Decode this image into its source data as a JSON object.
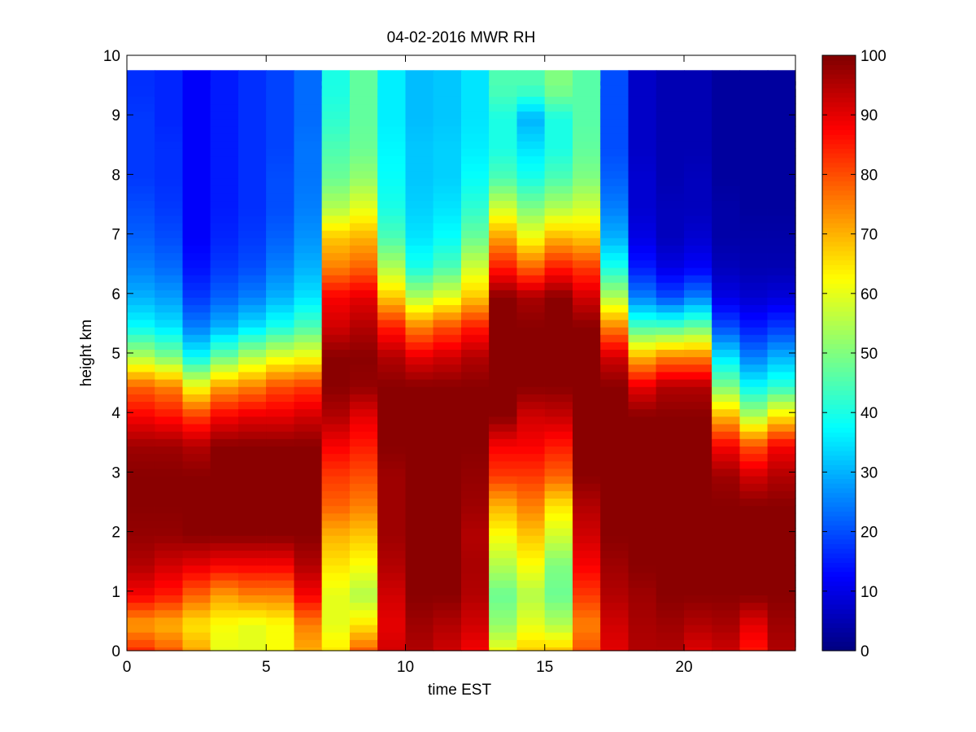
{
  "chart_data": {
    "type": "heatmap",
    "title": "04-02-2016 MWR RH",
    "xlabel": "time EST",
    "ylabel": "height km",
    "xlim": [
      0,
      24
    ],
    "ylim": [
      0,
      10
    ],
    "xticks": [
      "0",
      "5",
      "10",
      "15",
      "20"
    ],
    "yticks": [
      "0",
      "1",
      "2",
      "3",
      "4",
      "5",
      "6",
      "7",
      "8",
      "9",
      "10"
    ],
    "colorbar": {
      "range": [
        0,
        100
      ],
      "ticks": [
        "0",
        "10",
        "20",
        "30",
        "40",
        "50",
        "60",
        "70",
        "80",
        "90",
        "100"
      ],
      "colormap": "jet"
    },
    "x_hours": [
      0,
      1,
      2,
      3,
      4,
      5,
      6,
      7,
      8,
      9,
      10,
      11,
      12,
      13,
      14,
      15,
      16,
      17,
      18,
      19,
      20,
      21,
      22,
      23
    ],
    "heights_km": [
      0,
      0.5,
      1,
      1.5,
      2,
      2.5,
      3,
      3.5,
      4,
      4.5,
      5,
      5.5,
      6,
      6.5,
      7,
      7.5,
      8,
      8.5,
      9,
      9.5
    ],
    "rh_profiles": [
      [
        85,
        72,
        88,
        95,
        98,
        99,
        99,
        97,
        88,
        78,
        55,
        38,
        30,
        25,
        22,
        20,
        18,
        18,
        18,
        17
      ],
      [
        80,
        70,
        85,
        92,
        98,
        99,
        99,
        97,
        86,
        75,
        50,
        35,
        28,
        23,
        20,
        18,
        17,
        17,
        16,
        16
      ],
      [
        72,
        65,
        78,
        90,
        99,
        99,
        99,
        95,
        82,
        62,
        38,
        25,
        18,
        14,
        12,
        12,
        12,
        12,
        12,
        12
      ],
      [
        60,
        62,
        72,
        88,
        99,
        99,
        99,
        99,
        88,
        72,
        48,
        30,
        22,
        18,
        16,
        15,
        15,
        15,
        15,
        15
      ],
      [
        60,
        60,
        75,
        88,
        99,
        99,
        99,
        99,
        90,
        75,
        55,
        35,
        25,
        20,
        18,
        17,
        17,
        17,
        17,
        17
      ],
      [
        62,
        62,
        75,
        88,
        99,
        99,
        99,
        99,
        90,
        80,
        60,
        40,
        30,
        25,
        22,
        20,
        20,
        19,
        19,
        19
      ],
      [
        70,
        75,
        88,
        95,
        99,
        99,
        99,
        99,
        92,
        82,
        62,
        45,
        35,
        30,
        27,
        25,
        24,
        24,
        23,
        23
      ],
      [
        65,
        60,
        60,
        65,
        70,
        78,
        82,
        88,
        95,
        99,
        99,
        92,
        88,
        75,
        68,
        55,
        48,
        45,
        42,
        40
      ],
      [
        80,
        65,
        55,
        62,
        68,
        75,
        80,
        85,
        90,
        98,
        99,
        95,
        90,
        78,
        70,
        60,
        52,
        48,
        47,
        47
      ],
      [
        92,
        90,
        92,
        95,
        97,
        97,
        97,
        99,
        99,
        99,
        95,
        85,
        68,
        55,
        45,
        40,
        38,
        37,
        36,
        36
      ],
      [
        95,
        97,
        99,
        99,
        99,
        99,
        99,
        99,
        99,
        99,
        90,
        75,
        55,
        40,
        35,
        33,
        32,
        32,
        31,
        31
      ],
      [
        92,
        95,
        99,
        99,
        99,
        99,
        99,
        99,
        99,
        99,
        92,
        80,
        60,
        45,
        38,
        35,
        33,
        33,
        32,
        32
      ],
      [
        88,
        92,
        95,
        96,
        95,
        97,
        98,
        99,
        99,
        99,
        95,
        85,
        68,
        58,
        48,
        42,
        38,
        36,
        35,
        35
      ],
      [
        62,
        52,
        48,
        55,
        62,
        70,
        82,
        88,
        99,
        99,
        99,
        99,
        99,
        85,
        72,
        58,
        45,
        40,
        40,
        45
      ],
      [
        68,
        60,
        55,
        62,
        68,
        75,
        82,
        88,
        92,
        99,
        99,
        99,
        96,
        78,
        62,
        50,
        40,
        35,
        30,
        45
      ],
      [
        70,
        55,
        48,
        50,
        58,
        65,
        78,
        85,
        93,
        99,
        99,
        99,
        99,
        85,
        70,
        55,
        45,
        40,
        40,
        50
      ],
      [
        80,
        75,
        82,
        88,
        92,
        95,
        99,
        99,
        99,
        99,
        99,
        99,
        92,
        82,
        68,
        58,
        50,
        47,
        46,
        46
      ],
      [
        90,
        92,
        95,
        97,
        99,
        99,
        99,
        99,
        99,
        99,
        92,
        75,
        55,
        40,
        30,
        25,
        22,
        20,
        20,
        20
      ],
      [
        95,
        96,
        97,
        99,
        99,
        99,
        99,
        99,
        99,
        90,
        70,
        45,
        25,
        15,
        10,
        8,
        8,
        7,
        7,
        7
      ],
      [
        95,
        97,
        99,
        99,
        99,
        99,
        99,
        99,
        99,
        95,
        75,
        45,
        20,
        10,
        6,
        6,
        5,
        5,
        5,
        5
      ],
      [
        90,
        95,
        99,
        99,
        99,
        99,
        99,
        99,
        99,
        95,
        75,
        48,
        25,
        12,
        8,
        6,
        6,
        5,
        5,
        5
      ],
      [
        92,
        96,
        99,
        99,
        99,
        99,
        97,
        88,
        70,
        50,
        35,
        20,
        10,
        6,
        4,
        4,
        3,
        3,
        3,
        3
      ],
      [
        85,
        90,
        99,
        99,
        99,
        99,
        92,
        80,
        55,
        38,
        25,
        15,
        8,
        5,
        4,
        3,
        3,
        3,
        3,
        3
      ],
      [
        95,
        97,
        99,
        99,
        99,
        99,
        95,
        88,
        65,
        42,
        30,
        18,
        9,
        5,
        4,
        3,
        3,
        3,
        3,
        3
      ]
    ]
  }
}
